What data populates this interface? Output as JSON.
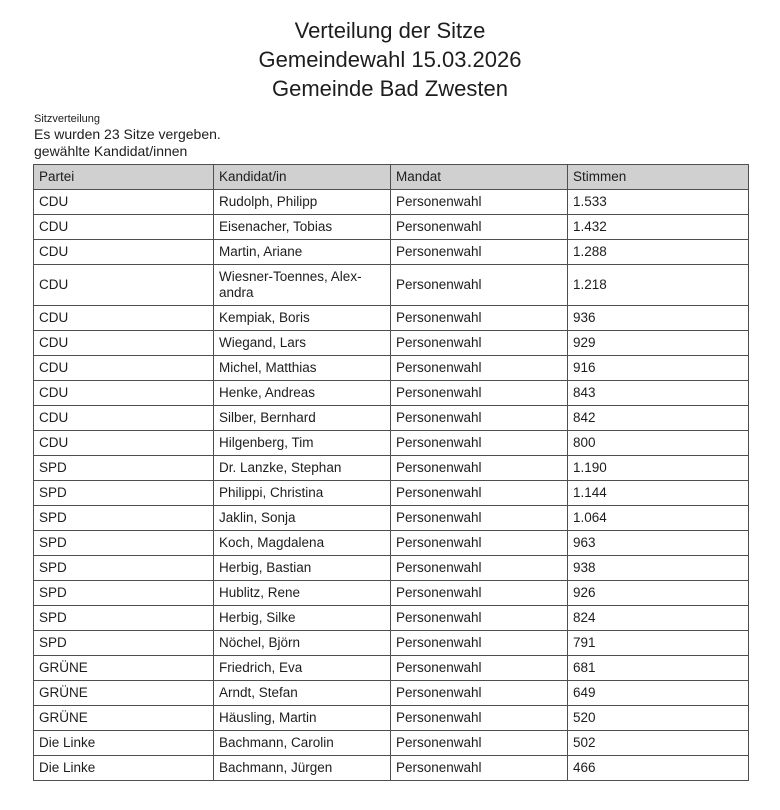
{
  "title": {
    "line1": "Verteilung der Sitze",
    "line2": "Gemeindewahl 15.03.2026",
    "line3": "Gemeinde Bad Zwesten"
  },
  "meta": {
    "section_label": "Sitzverteilung",
    "seats_info": "Es wurden 23 Sitze vergeben.",
    "list_label": "gewählte Kandidat/innen"
  },
  "table": {
    "headers": [
      "Partei",
      "Kandidat/in",
      "Mandat",
      "Stimmen"
    ],
    "rows": [
      {
        "partei": "CDU",
        "kandidat": "Rudolph, Philipp",
        "mandat": "Personenwahl",
        "stimmen": "1.533"
      },
      {
        "partei": "CDU",
        "kandidat": "Eisenacher, Tobias",
        "mandat": "Personenwahl",
        "stimmen": "1.432"
      },
      {
        "partei": "CDU",
        "kandidat": "Martin, Ariane",
        "mandat": "Personenwahl",
        "stimmen": "1.288"
      },
      {
        "partei": "CDU",
        "kandidat": "Wiesner-Toennes, Alex-\nandra",
        "mandat": "Personenwahl",
        "stimmen": "1.218"
      },
      {
        "partei": "CDU",
        "kandidat": "Kempiak, Boris",
        "mandat": "Personenwahl",
        "stimmen": "936"
      },
      {
        "partei": "CDU",
        "kandidat": "Wiegand, Lars",
        "mandat": "Personenwahl",
        "stimmen": "929"
      },
      {
        "partei": "CDU",
        "kandidat": "Michel, Matthias",
        "mandat": "Personenwahl",
        "stimmen": "916"
      },
      {
        "partei": "CDU",
        "kandidat": "Henke, Andreas",
        "mandat": "Personenwahl",
        "stimmen": "843"
      },
      {
        "partei": "CDU",
        "kandidat": "Silber, Bernhard",
        "mandat": "Personenwahl",
        "stimmen": "842"
      },
      {
        "partei": "CDU",
        "kandidat": "Hilgenberg, Tim",
        "mandat": "Personenwahl",
        "stimmen": "800"
      },
      {
        "partei": "SPD",
        "kandidat": "Dr. Lanzke, Stephan",
        "mandat": "Personenwahl",
        "stimmen": "1.190"
      },
      {
        "partei": "SPD",
        "kandidat": "Philippi, Christina",
        "mandat": "Personenwahl",
        "stimmen": "1.144"
      },
      {
        "partei": "SPD",
        "kandidat": "Jaklin, Sonja",
        "mandat": "Personenwahl",
        "stimmen": "1.064"
      },
      {
        "partei": "SPD",
        "kandidat": "Koch, Magdalena",
        "mandat": "Personenwahl",
        "stimmen": "963"
      },
      {
        "partei": "SPD",
        "kandidat": "Herbig, Bastian",
        "mandat": "Personenwahl",
        "stimmen": "938"
      },
      {
        "partei": "SPD",
        "kandidat": "Hublitz, Rene",
        "mandat": "Personenwahl",
        "stimmen": "926"
      },
      {
        "partei": "SPD",
        "kandidat": "Herbig, Silke",
        "mandat": "Personenwahl",
        "stimmen": "824"
      },
      {
        "partei": "SPD",
        "kandidat": "Nöchel, Björn",
        "mandat": "Personenwahl",
        "stimmen": "791"
      },
      {
        "partei": "GRÜNE",
        "kandidat": "Friedrich, Eva",
        "mandat": "Personenwahl",
        "stimmen": "681"
      },
      {
        "partei": "GRÜNE",
        "kandidat": "Arndt, Stefan",
        "mandat": "Personenwahl",
        "stimmen": "649"
      },
      {
        "partei": "GRÜNE",
        "kandidat": "Häusling, Martin",
        "mandat": "Personenwahl",
        "stimmen": "520"
      },
      {
        "partei": "Die Linke",
        "kandidat": "Bachmann, Carolin",
        "mandat": "Personenwahl",
        "stimmen": "502"
      },
      {
        "partei": "Die Linke",
        "kandidat": "Bachmann, Jürgen",
        "mandat": "Personenwahl",
        "stimmen": "466"
      }
    ]
  },
  "colors": {
    "header_bg": "#d0d0d0",
    "border": "#4f4f4f",
    "text": "#1d1d1d"
  }
}
